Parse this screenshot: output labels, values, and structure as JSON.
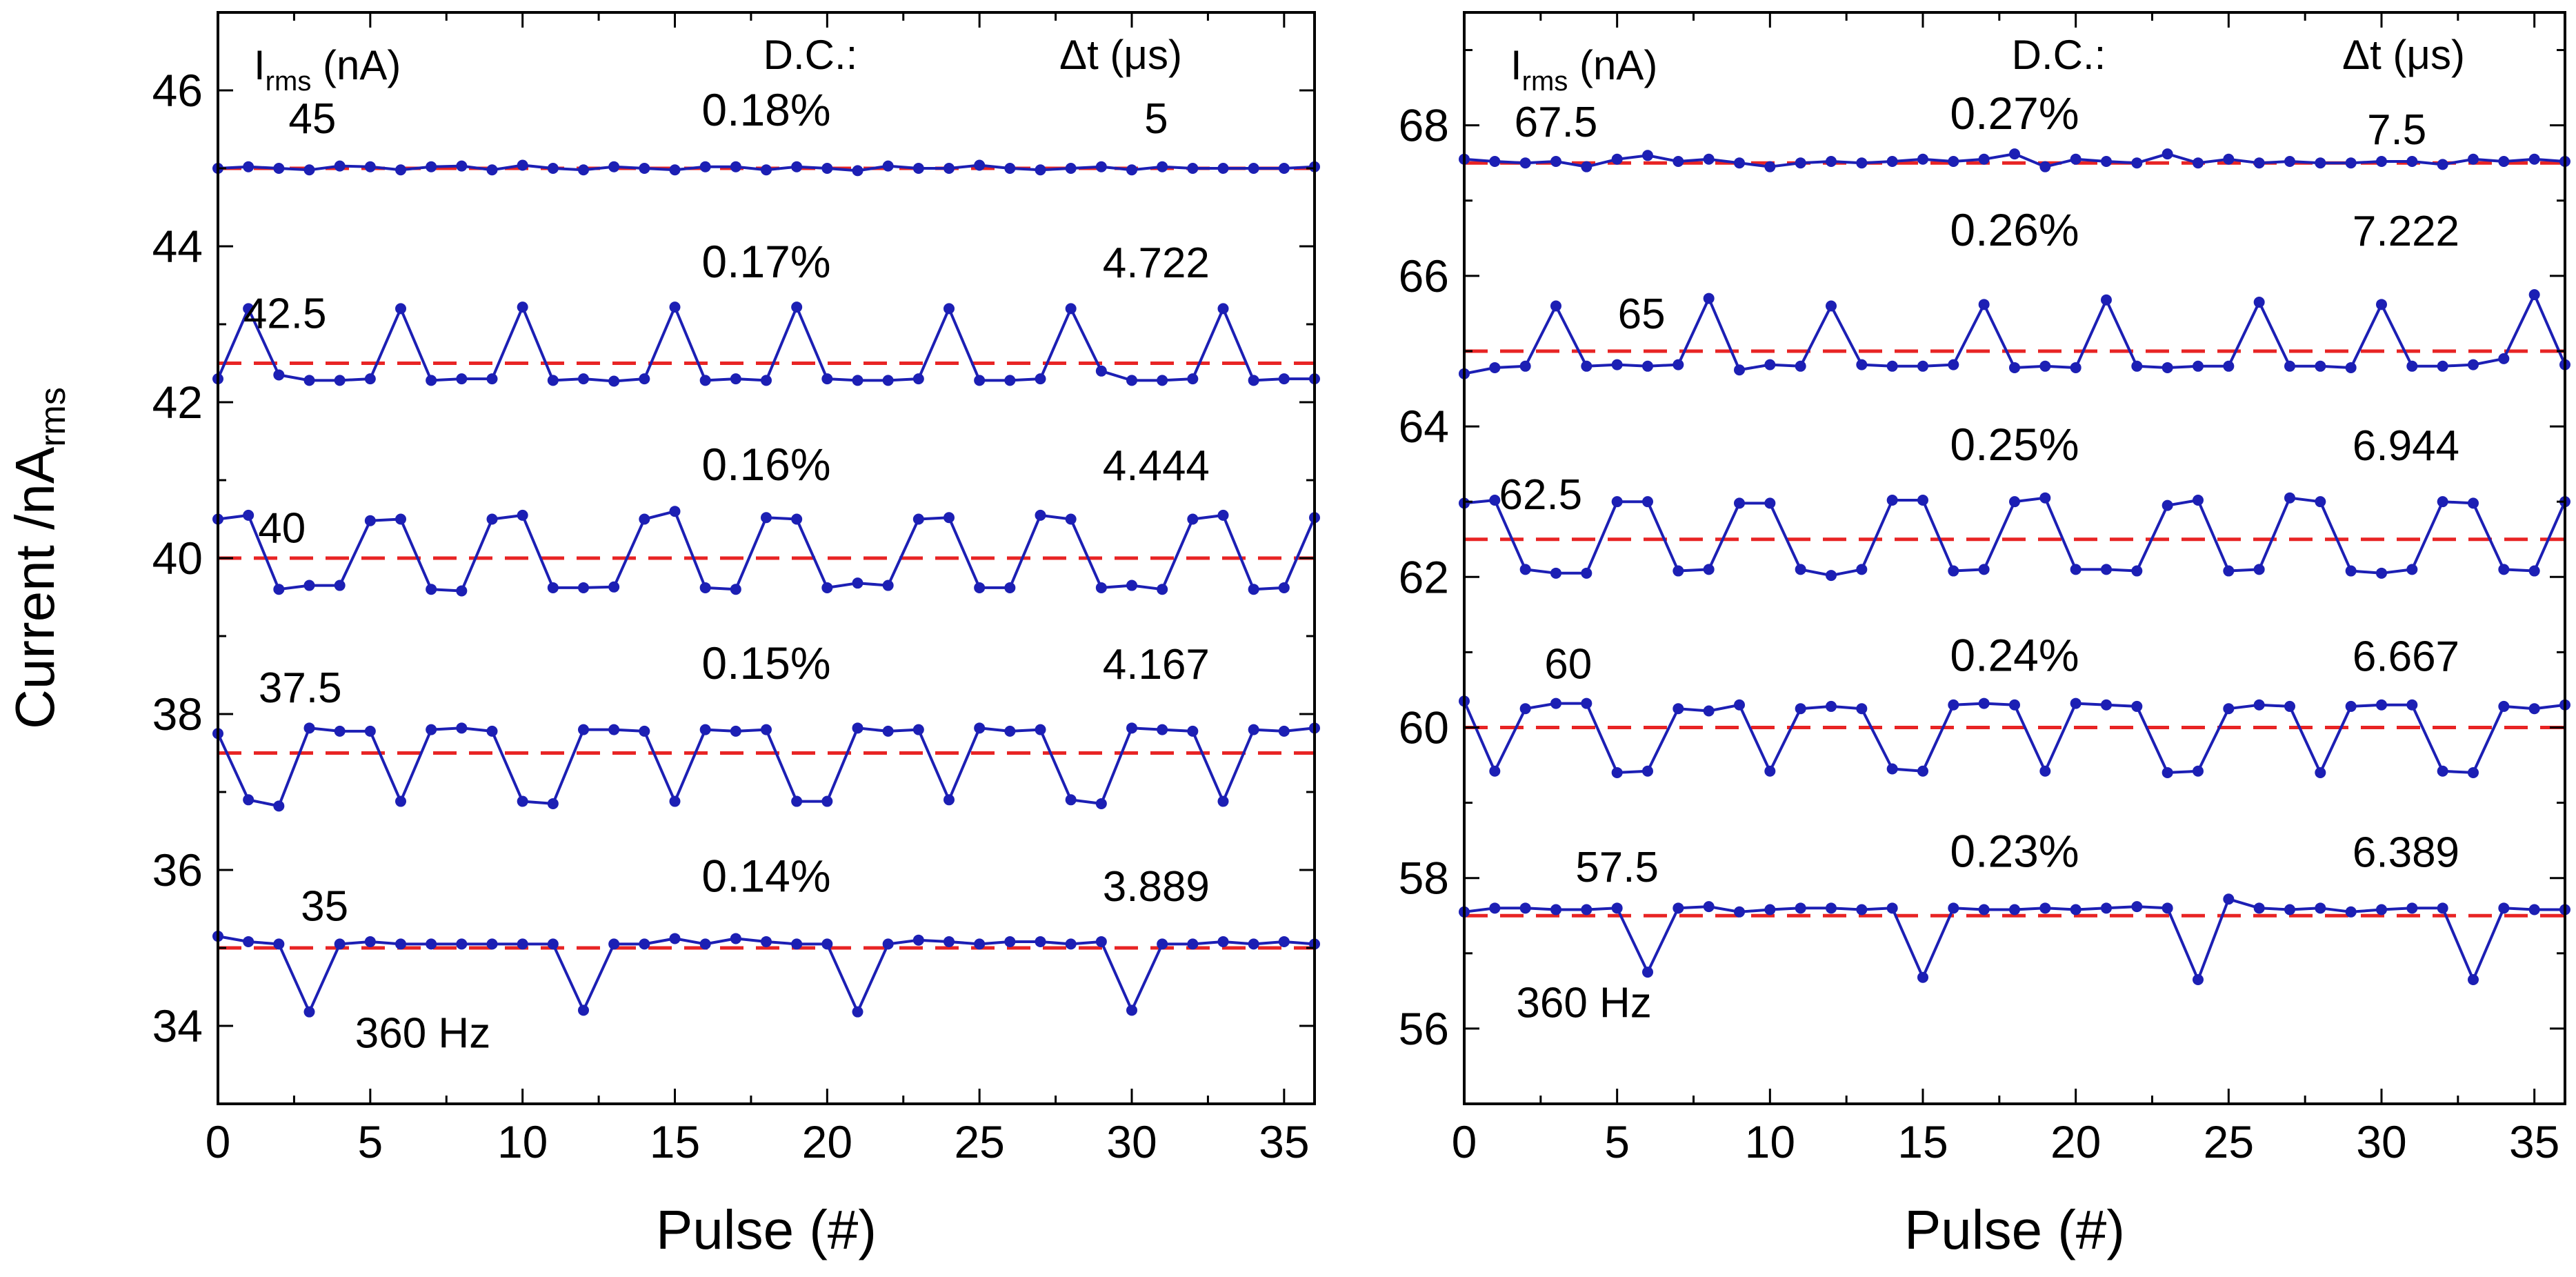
{
  "chart_data": [
    {
      "type": "line",
      "panel": "left",
      "xlabel": "Pulse (#)",
      "ylabel_main": "Current /nA",
      "ylabel_sub": "rms",
      "xlim": [
        0,
        36
      ],
      "ylim": [
        33,
        47
      ],
      "xticks": [
        0,
        5,
        10,
        15,
        20,
        25,
        30,
        35
      ],
      "yticks": [
        34,
        36,
        38,
        40,
        42,
        44,
        46
      ],
      "header": {
        "irms_main": "I",
        "irms_sub": "rms",
        "irms_unit": " (nA)",
        "dc": "D.C.:",
        "dt": "Δt (μs)"
      },
      "note": "360 Hz",
      "note_pos": [
        4.5,
        33.72
      ],
      "line_color": "#1c1fb4",
      "ref_color": "#e82424",
      "series": [
        {
          "name": "45",
          "reference": 45,
          "dc": "0.18%",
          "dt": "5",
          "irms_pos": [
            3.1,
            45.45
          ],
          "dc_pos": [
            18.0,
            45.55
          ],
          "dt_pos": [
            30.8,
            45.45
          ],
          "values": [
            45.0,
            45.02,
            45.0,
            44.98,
            45.03,
            45.02,
            44.98,
            45.02,
            45.03,
            44.98,
            45.04,
            45.0,
            44.98,
            45.02,
            45.0,
            44.98,
            45.02,
            45.02,
            44.98,
            45.02,
            45.0,
            44.97,
            45.03,
            45.0,
            45.0,
            45.04,
            45.0,
            44.98,
            45.0,
            45.02,
            44.98,
            45.02,
            45.0,
            45.0,
            45.0,
            45.0,
            45.02
          ]
        },
        {
          "name": "42.5",
          "reference": 42.5,
          "dc": "0.17%",
          "dt": "4.722",
          "irms_pos": [
            2.2,
            42.95
          ],
          "dc_pos": [
            18.0,
            43.6
          ],
          "dt_pos": [
            30.8,
            43.6
          ],
          "values": [
            42.3,
            43.2,
            42.35,
            42.28,
            42.28,
            42.3,
            43.2,
            42.28,
            42.3,
            42.3,
            43.22,
            42.28,
            42.3,
            42.27,
            42.3,
            43.22,
            42.28,
            42.3,
            42.28,
            43.22,
            42.3,
            42.28,
            42.28,
            42.3,
            43.2,
            42.28,
            42.28,
            42.3,
            43.2,
            42.4,
            42.28,
            42.28,
            42.3,
            43.2,
            42.28,
            42.3,
            42.3
          ]
        },
        {
          "name": "40",
          "reference": 40,
          "dc": "0.16%",
          "dt": "4.444",
          "irms_pos": [
            2.1,
            40.2
          ],
          "dc_pos": [
            18.0,
            41.0
          ],
          "dt_pos": [
            30.8,
            41.0
          ],
          "values": [
            40.5,
            40.55,
            39.6,
            39.65,
            39.65,
            40.48,
            40.5,
            39.6,
            39.58,
            40.5,
            40.55,
            39.62,
            39.62,
            39.63,
            40.5,
            40.6,
            39.62,
            39.6,
            40.52,
            40.5,
            39.62,
            39.68,
            39.65,
            40.5,
            40.52,
            39.62,
            39.62,
            40.55,
            40.5,
            39.62,
            39.65,
            39.6,
            40.5,
            40.55,
            39.6,
            39.62,
            40.52
          ]
        },
        {
          "name": "37.5",
          "reference": 37.5,
          "dc": "0.15%",
          "dt": "4.167",
          "irms_pos": [
            2.7,
            38.15
          ],
          "dc_pos": [
            18.0,
            38.45
          ],
          "dt_pos": [
            30.8,
            38.45
          ],
          "values": [
            37.75,
            36.9,
            36.82,
            37.82,
            37.78,
            37.78,
            36.88,
            37.8,
            37.82,
            37.78,
            36.88,
            36.85,
            37.8,
            37.8,
            37.78,
            36.88,
            37.8,
            37.78,
            37.8,
            36.88,
            36.88,
            37.82,
            37.78,
            37.8,
            36.9,
            37.82,
            37.78,
            37.8,
            36.9,
            36.85,
            37.82,
            37.8,
            37.78,
            36.88,
            37.8,
            37.78,
            37.82
          ]
        },
        {
          "name": "35",
          "reference": 35,
          "dc": "0.14%",
          "dt": "3.889",
          "irms_pos": [
            3.5,
            35.35
          ],
          "dc_pos": [
            18.0,
            35.72
          ],
          "dt_pos": [
            30.8,
            35.6
          ],
          "values": [
            35.15,
            35.08,
            35.05,
            34.18,
            35.05,
            35.08,
            35.05,
            35.05,
            35.05,
            35.05,
            35.05,
            35.05,
            34.2,
            35.05,
            35.05,
            35.12,
            35.05,
            35.12,
            35.08,
            35.05,
            35.05,
            34.18,
            35.05,
            35.1,
            35.08,
            35.05,
            35.08,
            35.08,
            35.05,
            35.08,
            34.2,
            35.05,
            35.05,
            35.08,
            35.05,
            35.08,
            35.05
          ]
        }
      ]
    },
    {
      "type": "line",
      "panel": "right",
      "xlabel": "Pulse (#)",
      "xlim": [
        0,
        36
      ],
      "ylim": [
        55,
        69.5
      ],
      "xticks": [
        0,
        5,
        10,
        15,
        20,
        25,
        30,
        35
      ],
      "yticks": [
        56,
        58,
        60,
        62,
        64,
        66,
        68
      ],
      "header": {
        "irms_main": "I",
        "irms_sub": "rms",
        "irms_unit": " (nA)",
        "dc": "D.C.:",
        "dt": "Δt (μs)"
      },
      "note": "360 Hz",
      "note_pos": [
        1.7,
        56.15
      ],
      "line_color": "#1c1fb4",
      "ref_color": "#e82424",
      "series": [
        {
          "name": "67.5",
          "reference": 67.5,
          "dc": "0.27%",
          "dt": "7.5",
          "irms_pos": [
            3.0,
            67.85
          ],
          "dc_pos": [
            18.0,
            67.95
          ],
          "dt_pos": [
            30.5,
            67.75
          ],
          "values": [
            67.55,
            67.52,
            67.5,
            67.52,
            67.45,
            67.55,
            67.6,
            67.52,
            67.55,
            67.5,
            67.45,
            67.5,
            67.52,
            67.5,
            67.52,
            67.55,
            67.52,
            67.55,
            67.62,
            67.45,
            67.55,
            67.52,
            67.5,
            67.62,
            67.5,
            67.55,
            67.5,
            67.52,
            67.5,
            67.5,
            67.52,
            67.52,
            67.48,
            67.55,
            67.52,
            67.55,
            67.52
          ]
        },
        {
          "name": "65",
          "reference": 65,
          "dc": "0.26%",
          "dt": "7.222",
          "irms_pos": [
            5.8,
            65.3
          ],
          "dc_pos": [
            18.0,
            66.4
          ],
          "dt_pos": [
            30.8,
            66.4
          ],
          "values": [
            64.7,
            64.78,
            64.8,
            65.6,
            64.8,
            64.82,
            64.8,
            64.82,
            65.7,
            64.75,
            64.82,
            64.8,
            65.6,
            64.82,
            64.8,
            64.8,
            64.82,
            65.62,
            64.78,
            64.8,
            64.78,
            65.68,
            64.8,
            64.78,
            64.8,
            64.8,
            65.65,
            64.8,
            64.8,
            64.78,
            65.62,
            64.8,
            64.8,
            64.82,
            64.9,
            65.75,
            64.82
          ]
        },
        {
          "name": "62.5",
          "reference": 62.5,
          "dc": "0.25%",
          "dt": "6.944",
          "irms_pos": [
            2.5,
            62.9
          ],
          "dc_pos": [
            18.0,
            63.55
          ],
          "dt_pos": [
            30.8,
            63.55
          ],
          "values": [
            62.98,
            63.02,
            62.1,
            62.05,
            62.05,
            63.0,
            63.0,
            62.08,
            62.1,
            62.98,
            62.98,
            62.1,
            62.02,
            62.1,
            63.02,
            63.02,
            62.08,
            62.1,
            63.0,
            63.05,
            62.1,
            62.1,
            62.08,
            62.95,
            63.02,
            62.08,
            62.1,
            63.05,
            63.0,
            62.08,
            62.05,
            62.1,
            63.0,
            62.98,
            62.1,
            62.08,
            63.0
          ]
        },
        {
          "name": "60",
          "reference": 60,
          "dc": "0.24%",
          "dt": "6.667",
          "irms_pos": [
            3.4,
            60.65
          ],
          "dc_pos": [
            18.0,
            60.75
          ],
          "dt_pos": [
            30.8,
            60.75
          ],
          "values": [
            60.35,
            59.42,
            60.25,
            60.32,
            60.32,
            59.4,
            59.42,
            60.25,
            60.22,
            60.3,
            59.42,
            60.25,
            60.28,
            60.25,
            59.45,
            59.42,
            60.3,
            60.32,
            60.3,
            59.42,
            60.32,
            60.3,
            60.28,
            59.4,
            59.42,
            60.25,
            60.3,
            60.28,
            59.4,
            60.28,
            60.3,
            60.3,
            59.42,
            59.4,
            60.28,
            60.25,
            60.3
          ]
        },
        {
          "name": "57.5",
          "reference": 57.5,
          "dc": "0.23%",
          "dt": "6.389",
          "irms_pos": [
            5.0,
            57.95
          ],
          "dc_pos": [
            18.0,
            58.15
          ],
          "dt_pos": [
            30.8,
            58.15
          ],
          "values": [
            57.55,
            57.6,
            57.6,
            57.58,
            57.58,
            57.6,
            56.75,
            57.6,
            57.62,
            57.55,
            57.58,
            57.6,
            57.6,
            57.58,
            57.6,
            56.68,
            57.6,
            57.58,
            57.58,
            57.6,
            57.58,
            57.6,
            57.62,
            57.6,
            56.65,
            57.72,
            57.6,
            57.58,
            57.6,
            57.55,
            57.58,
            57.6,
            57.6,
            56.65,
            57.6,
            57.58,
            57.58
          ]
        }
      ]
    }
  ]
}
